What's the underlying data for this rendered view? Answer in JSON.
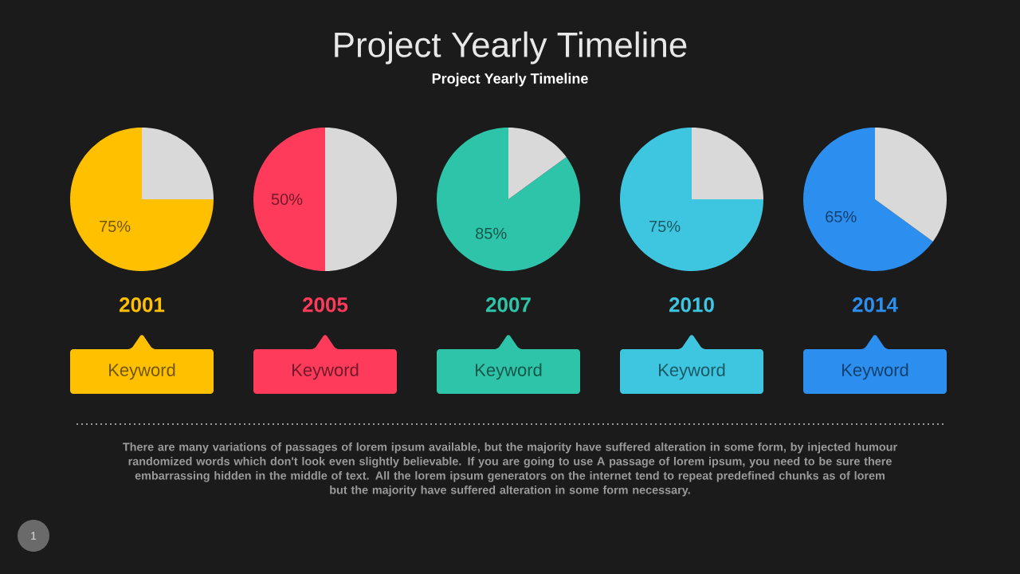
{
  "chart_data": [
    {
      "type": "other",
      "title": "Project Yearly Timeline",
      "subtitle": "Project Yearly Timeline"
    },
    {
      "type": "pie",
      "title": "2001",
      "categories": [
        null,
        null
      ],
      "values": [
        75,
        25
      ],
      "colors": [
        "#ffc000",
        "#d9d9d9"
      ],
      "value_labels": [
        "75%",
        null
      ],
      "annotations": [
        "Keyword"
      ]
    },
    {
      "type": "pie",
      "title": "2005",
      "categories": [
        null,
        null
      ],
      "values": [
        50,
        50
      ],
      "colors": [
        "#ff3b5c",
        "#d9d9d9"
      ],
      "value_labels": [
        "50%",
        null
      ],
      "annotations": [
        "Keyword"
      ]
    },
    {
      "type": "pie",
      "title": "2007",
      "categories": [
        null,
        null
      ],
      "values": [
        85,
        15
      ],
      "colors": [
        "#2ec4a9",
        "#d9d9d9"
      ],
      "value_labels": [
        "85%",
        null
      ],
      "annotations": [
        "Keyword"
      ]
    },
    {
      "type": "pie",
      "title": "2010",
      "categories": [
        null,
        null
      ],
      "values": [
        75,
        25
      ],
      "colors": [
        "#3ec6e0",
        "#d9d9d9"
      ],
      "value_labels": [
        "75%",
        null
      ],
      "annotations": [
        "Keyword"
      ]
    },
    {
      "type": "pie",
      "title": "2014",
      "categories": [
        null,
        null
      ],
      "values": [
        65,
        35
      ],
      "colors": [
        "#2c8ff0",
        "#d9d9d9"
      ],
      "value_labels": [
        "65%",
        null
      ],
      "annotations": [
        "Keyword"
      ]
    },
    {
      "type": "other",
      "annotations": [
        "There are many variations of passages of lorem ipsum available, but the majority have suffered alteration in some form, by injected humour randomized words which don't look even slightly believable. If you are going to use A passage of lorem ipsum, you need to be sure there embarrassing hidden in the middle of text. All the lorem ipsum generators on the internet tend to repeat predefined chunks as of lorem",
        "but the majority have suffered alteration in some form  necessary.",
        "1"
      ]
    }
  ]
}
